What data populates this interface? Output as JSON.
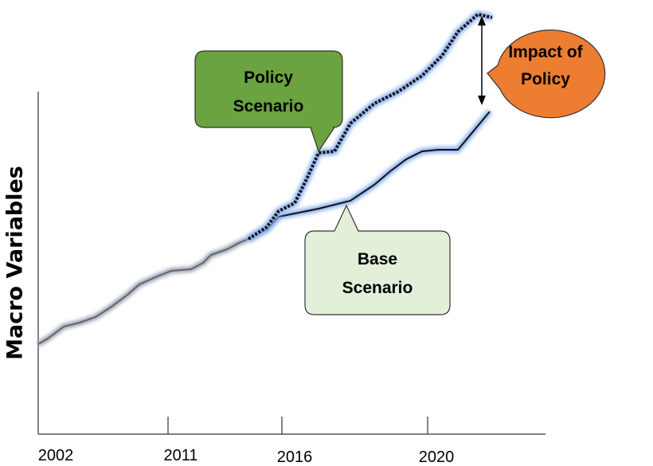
{
  "y_axis_label": "Macro Variables",
  "x_labels": [
    "2002",
    "2011",
    "2016",
    "2020"
  ],
  "callouts": {
    "policy": [
      "Policy",
      "Scenario"
    ],
    "base": [
      "Base",
      "Scenario"
    ],
    "impact": [
      "Impact of",
      "Policy"
    ]
  }
}
